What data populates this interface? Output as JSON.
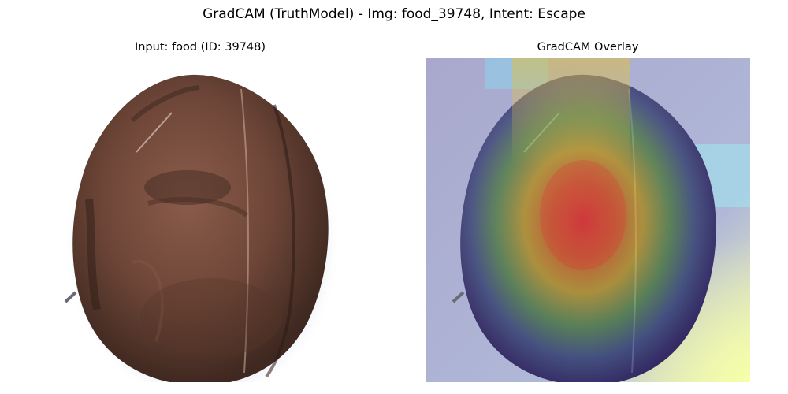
{
  "figure": {
    "title": "GradCAM (TruthModel) - Img: food_39748, Intent: Escape"
  },
  "panels": {
    "input": {
      "title": "Input: food (ID: 39748)",
      "image_subject": "coconut"
    },
    "overlay": {
      "title": "GradCAM Overlay",
      "colormap": "jet",
      "image_subject": "coconut-with-gradcam-heatmap"
    }
  },
  "colors": {
    "background": "#ffffff",
    "coconut_shell": "#6e4a3c",
    "heatmap_low": "#2a2ab4",
    "heatmap_high": "#e0303a"
  }
}
